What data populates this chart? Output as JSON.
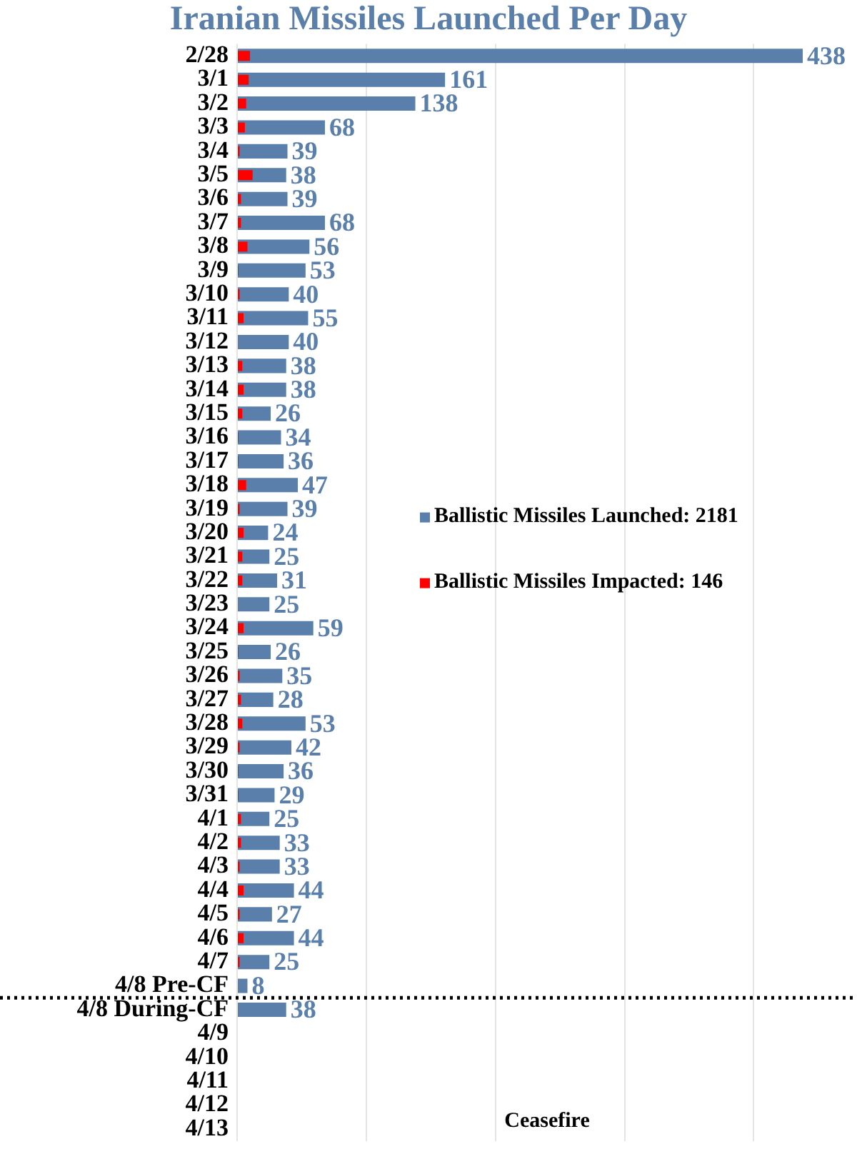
{
  "chart_data": {
    "type": "bar",
    "orientation": "horizontal",
    "title": "Iranian Missiles Launched Per Day",
    "categories": [
      "2/28",
      "3/1",
      "3/2",
      "3/3",
      "3/4",
      "3/5",
      "3/6",
      "3/7",
      "3/8",
      "3/9",
      "3/10",
      "3/11",
      "3/12",
      "3/13",
      "3/14",
      "3/15",
      "3/16",
      "3/17",
      "3/18",
      "3/19",
      "3/20",
      "3/21",
      "3/22",
      "3/23",
      "3/24",
      "3/25",
      "3/26",
      "3/27",
      "3/28",
      "3/29",
      "3/30",
      "3/31",
      "4/1",
      "4/2",
      "4/3",
      "4/4",
      "4/5",
      "4/6",
      "4/7",
      "4/8 Pre-CF",
      "4/8 During-CF",
      "4/9",
      "4/10",
      "4/11",
      "4/12",
      "4/13"
    ],
    "series": [
      {
        "name": "Ballistic Missiles Launched: 2181",
        "color": "#5a7fab",
        "values": [
          438,
          161,
          138,
          68,
          39,
          38,
          39,
          68,
          56,
          53,
          40,
          55,
          40,
          38,
          38,
          26,
          34,
          36,
          47,
          39,
          24,
          25,
          31,
          25,
          59,
          26,
          35,
          28,
          53,
          42,
          36,
          29,
          25,
          33,
          33,
          44,
          27,
          44,
          25,
          8,
          38,
          null,
          null,
          null,
          null,
          null
        ],
        "value_labels": [
          "438",
          "161",
          "138",
          "68",
          "39",
          "38",
          "39",
          "68",
          "56",
          "53",
          "40",
          "55",
          "40",
          "38",
          "38",
          "26",
          "34",
          "36",
          "47",
          "39",
          "24",
          "25",
          "31",
          "25",
          "59",
          "26",
          "35",
          "28",
          "53",
          "42",
          "36",
          "29",
          "25",
          "33",
          "33",
          "44",
          "27",
          "44",
          "25",
          "8",
          "38",
          null,
          null,
          null,
          null,
          null
        ]
      },
      {
        "name": "Ballistic Missiles Impacted: 146",
        "color": "#ff0000",
        "values": [
          10,
          9,
          7,
          6,
          2,
          12,
          3,
          3,
          8,
          1,
          2,
          5,
          0,
          4,
          5,
          4,
          1,
          1,
          7,
          2,
          5,
          4,
          4,
          0,
          5,
          1,
          2,
          3,
          4,
          2,
          1,
          1,
          3,
          3,
          2,
          5,
          2,
          5,
          2,
          null,
          null,
          null,
          null,
          null,
          null,
          null
        ]
      }
    ],
    "xlim": [
      0,
      480
    ],
    "xticks": [
      {
        "value": 0,
        "label": null
      },
      {
        "value": 100,
        "label": null
      },
      {
        "value": 200,
        "label": null
      },
      {
        "value": 300,
        "label": null
      },
      {
        "value": 400,
        "label": null
      }
    ],
    "tick_labels": "y",
    "grid": "x",
    "legend": "right",
    "ref_lines": [
      {
        "axis": "y",
        "value": "4/8 During-CF",
        "label": null,
        "line_style": "dotted",
        "color": "#000000"
      }
    ],
    "annotations": [
      "Ceasefire"
    ]
  }
}
